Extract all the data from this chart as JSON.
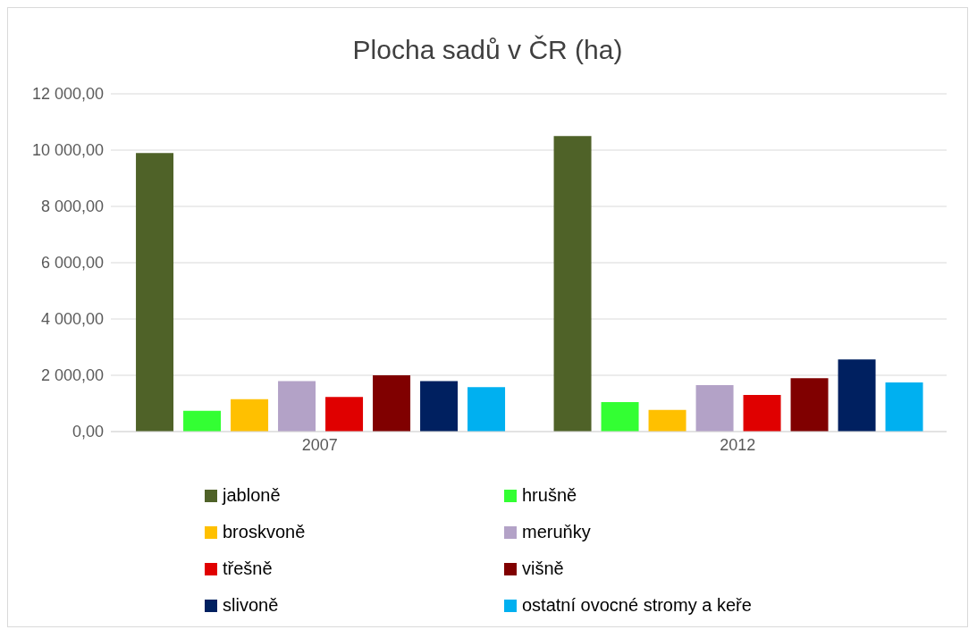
{
  "chart_data": {
    "type": "bar",
    "title": "Plocha sadů v ČR (ha)",
    "categories": [
      "2007",
      "2012"
    ],
    "series": [
      {
        "name": "jabloně",
        "color": "#4f6228",
        "values": [
          9900,
          10500
        ]
      },
      {
        "name": "hrušně",
        "color": "#33ff33",
        "values": [
          740,
          1050
        ]
      },
      {
        "name": "broskvoně",
        "color": "#ffc000",
        "values": [
          1150,
          770
        ]
      },
      {
        "name": "meruňky",
        "color": "#b3a2c7",
        "values": [
          1790,
          1650
        ]
      },
      {
        "name": "třešně",
        "color": "#e00000",
        "values": [
          1230,
          1300
        ]
      },
      {
        "name": "višně",
        "color": "#800000",
        "values": [
          2000,
          1900
        ]
      },
      {
        "name": "slivoně",
        "color": "#002060",
        "values": [
          1790,
          2560
        ]
      },
      {
        "name": "ostatní ovocné stromy a keře",
        "color": "#00b0f0",
        "values": [
          1580,
          1750
        ]
      }
    ],
    "ylim": [
      0,
      12000
    ],
    "yticks": [
      {
        "value": 0,
        "label": "0,00"
      },
      {
        "value": 2000,
        "label": "2 000,00"
      },
      {
        "value": 4000,
        "label": "4 000,00"
      },
      {
        "value": 6000,
        "label": "6 000,00"
      },
      {
        "value": 8000,
        "label": "8 000,00"
      },
      {
        "value": 10000,
        "label": "10 000,00"
      },
      {
        "value": 12000,
        "label": "12 000,00"
      }
    ],
    "grid": "y",
    "legend": "bottom"
  }
}
